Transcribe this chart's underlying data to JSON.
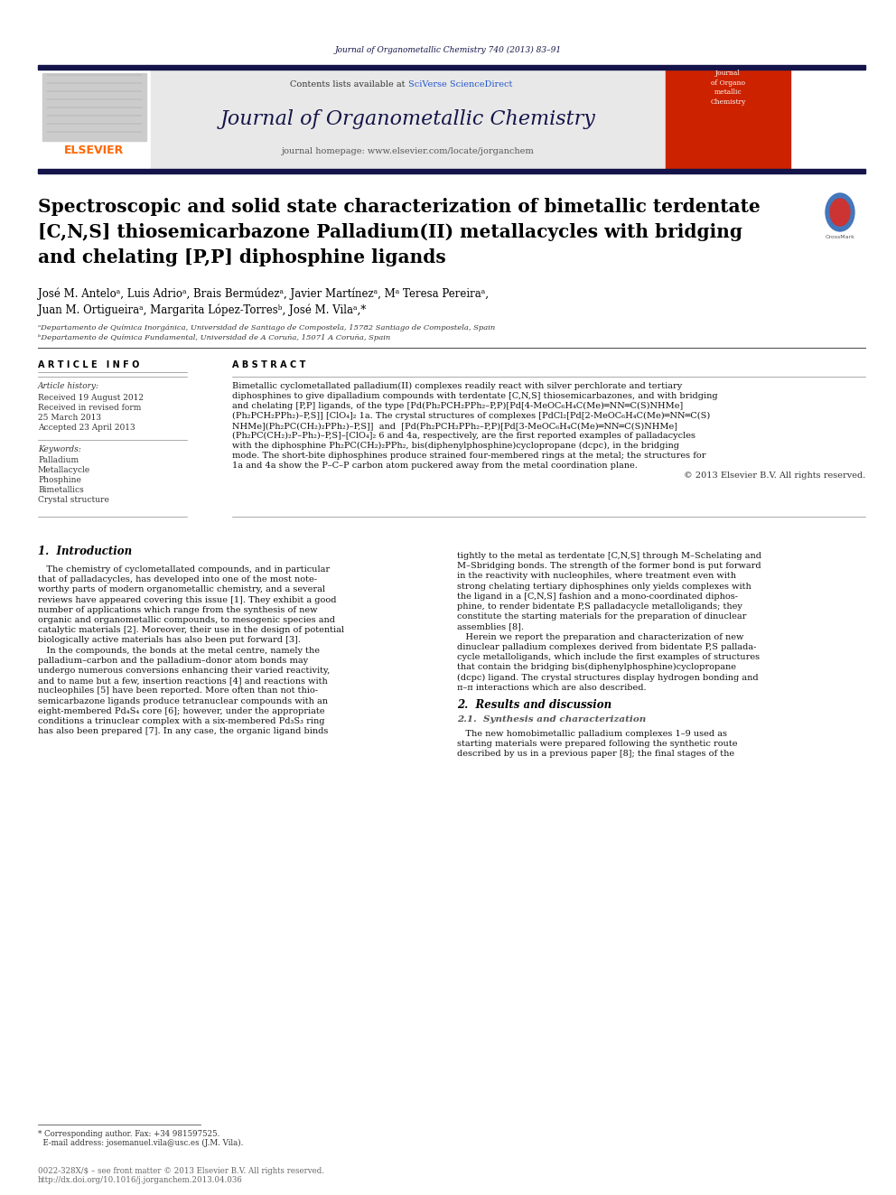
{
  "page_bg": "#ffffff",
  "journal_name": "Journal of Organometallic Chemistry",
  "journal_ref": "Journal of Organometallic Chemistry 740 (2013) 83–91",
  "contents_line_plain": "Contents lists available at ",
  "contents_line_link": "SciVerse ScienceDirect",
  "homepage": "journal homepage: www.elsevier.com/locate/jorganchem",
  "elsevier_color": "#FF6600",
  "elsevier_text": "ELSEVIER",
  "title_line1": "Spectroscopic and solid state characterization of bimetallic terdentate",
  "title_line2": "[C,N,S] thiosemicarbazone Palladium(II) metallacycles with bridging",
  "title_line3": "and chelating [P,P] diphosphine ligands",
  "authors_line1": "José M. Anteloᵃ, Luis Adrioᵃ, Brais Bermúdezᵃ, Javier Martínezᵃ, Mᵃ Teresa Pereiraᵃ,",
  "authors_line2": "Juan M. Ortigueiraᵃ, Margarita López-Torresᵇ, José M. Vilaᵃ,*",
  "affil_a": "ᵃDepartamento de Química Inorgánica, Universidad de Santiago de Compostela, 15782 Santiago de Compostela, Spain",
  "affil_b": "ᵇDepartamento de Química Fundamental, Universidad de A Coruña, 15071 A Coruña, Spain",
  "article_info_title": "A R T I C L E   I N F O",
  "article_history_label": "Article history:",
  "received1": "Received 19 August 2012",
  "received2": "Received in revised form",
  "received3": "25 March 2013",
  "accepted": "Accepted 23 April 2013",
  "keywords_label": "Keywords:",
  "kw1": "Palladium",
  "kw2": "Metallacycle",
  "kw3": "Phosphine",
  "kw4": "Bimetallics",
  "kw5": "Crystal structure",
  "abstract_title": "A B S T R A C T",
  "abstract_lines": [
    "Bimetallic cyclometallated palladium(II) complexes readily react with silver perchlorate and tertiary",
    "diphosphines to give dipalladium compounds with terdentate [C,N,S] thiosemicarbazones, and with bridging",
    "and chelating [P,P] ligands, of the type [Pd(Ph₂PCH₂PPh₂–P,P)[Pd[4-MeOC₆H₄C(Me)═NN═C(S)NHMe]",
    "(Ph₂PCH₂PPh₂)–P,S]] [ClO₄]₂ 1a. The crystal structures of complexes [PdCl₂[Pd[2-MeOC₆H₄C(Me)═NN═C(S)",
    "NHMe](Ph₂PC(CH₂)₂PPh₂)–P,S]]  and  [Pd(Ph₂PCH₂PPh₂–P,P)[Pd[3-MeOC₆H₄C(Me)═NN═C(S)NHMe]",
    "(Ph₂PC(CH₂)₂P–Ph₂)–P,S]–[ClO₄]₂ 6 and 4a, respectively, are the first reported examples of palladacycles",
    "with the diphosphine Ph₂PC(CH₂)₂PPh₂, bis(diphenylphosphine)cyclopropane (dcpc), in the bridging",
    "mode. The short-bite diphosphines produce strained four-membered rings at the metal; the structures for",
    "1a and 4a show the P–C–P carbon atom puckered away from the metal coordination plane.",
    "© 2013 Elsevier B.V. All rights reserved."
  ],
  "section1_title": "1.  Introduction",
  "col1_lines": [
    "   The chemistry of cyclometallated compounds, and in particular",
    "that of palladacycles, has developed into one of the most note-",
    "worthy parts of modern organometallic chemistry, and a several",
    "reviews have appeared covering this issue [1]. They exhibit a good",
    "number of applications which range from the synthesis of new",
    "organic and organometallic compounds, to mesogenic species and",
    "catalytic materials [2]. Moreover, their use in the design of potential",
    "biologically active materials has also been put forward [3].",
    "   In the compounds, the bonds at the metal centre, namely the",
    "palladium–carbon and the palladium–donor atom bonds may",
    "undergo numerous conversions enhancing their varied reactivity,",
    "and to name but a few, insertion reactions [4] and reactions with",
    "nucleophiles [5] have been reported. More often than not thio-",
    "semicarbazone ligands produce tetranuclear compounds with an",
    "eight-membered Pd₄S₄ core [6]; however, under the appropriate",
    "conditions a trinuclear complex with a six-membered Pd₃S₃ ring",
    "has also been prepared [7]. In any case, the organic ligand binds"
  ],
  "col2_lines": [
    "tightly to the metal as terdentate [C,N,S] through M–Schelating and",
    "M–Sbridging bonds. The strength of the former bond is put forward",
    "in the reactivity with nucleophiles, where treatment even with",
    "strong chelating tertiary diphosphines only yields complexes with",
    "the ligand in a [C,N,S] fashion and a mono-coordinated diphos-",
    "phine, to render bidentate P,S palladacycle metalloligands; they",
    "constitute the starting materials for the preparation of dinuclear",
    "assemblies [8].",
    "   Herein we report the preparation and characterization of new",
    "dinuclear palladium complexes derived from bidentate P,S pallada-",
    "cycle metalloligands, which include the first examples of structures",
    "that contain the bridging bis(diphenylphosphine)cyclopropane",
    "(dcpc) ligand. The crystal structures display hydrogen bonding and",
    "π–π interactions which are also described."
  ],
  "section2_title": "2.  Results and discussion",
  "section21_title": "2.1.  Synthesis and characterization",
  "section21_lines": [
    "   The new homobimetallic palladium complexes 1–9 used as",
    "starting materials were prepared following the synthetic route",
    "described by us in a previous paper [8]; the final stages of the"
  ],
  "footnote_lines": [
    "* Corresponding author. Fax: +34 981597525.",
    "  E-mail address: josemanuel.vila@usc.es (J.M. Vila)."
  ],
  "footer_lines": [
    "0022-328X/$ – see front matter © 2013 Elsevier B.V. All rights reserved.",
    "http://dx.doi.org/10.1016/j.jorganchem.2013.04.036"
  ],
  "dark_color": "#14144a",
  "sciverse_color": "#2255cc",
  "link_color": "#2255cc",
  "header_gray": "#e8e8e8",
  "body_text_color": "#111111",
  "affil_text_color": "#333333",
  "section_title_color": "#000000"
}
